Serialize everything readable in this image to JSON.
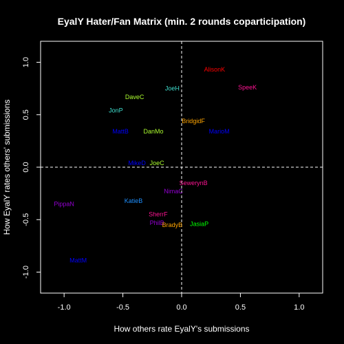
{
  "chart_data": {
    "type": "scatter",
    "title": "EyalY Hater/Fan Matrix (min. 2 rounds coparticipation)",
    "xlabel": "How others rate EyalY's submissions",
    "ylabel": "How EyalY rates others' submissions",
    "xlim": [
      -1.2,
      1.2
    ],
    "ylim": [
      -1.2,
      1.2
    ],
    "x_ticks": [
      -1.0,
      -0.5,
      0.0,
      0.5,
      1.0
    ],
    "y_ticks": [
      -1.0,
      -0.5,
      0.0,
      0.5,
      1.0
    ],
    "x_tick_labels": [
      "-1.0",
      "-0.5",
      "0.0",
      "0.5",
      "1.0"
    ],
    "y_tick_labels": [
      "-1.0",
      "-0.5",
      "0.0",
      "0.5",
      "1.0"
    ],
    "reference_lines": {
      "x": 0,
      "y": 0,
      "style": "dashed"
    },
    "grid": false,
    "background": "#000000",
    "points": [
      {
        "label": "AlisonK",
        "x": 0.28,
        "y": 0.93,
        "color": "#ff0000"
      },
      {
        "label": "SpeeK",
        "x": 0.56,
        "y": 0.76,
        "color": "#ff1493"
      },
      {
        "label": "JoeH",
        "x": -0.08,
        "y": 0.75,
        "color": "#40e0d0"
      },
      {
        "label": "DaveC",
        "x": -0.4,
        "y": 0.67,
        "color": "#adff2f"
      },
      {
        "label": "JonP",
        "x": -0.56,
        "y": 0.54,
        "color": "#40e0d0"
      },
      {
        "label": "BridgidF",
        "x": 0.1,
        "y": 0.44,
        "color": "#ffa500"
      },
      {
        "label": "MattB",
        "x": -0.52,
        "y": 0.34,
        "color": "#0000ff"
      },
      {
        "label": "DanMo",
        "x": -0.24,
        "y": 0.34,
        "color": "#adff2f"
      },
      {
        "label": "MarioM",
        "x": 0.32,
        "y": 0.34,
        "color": "#0000ff"
      },
      {
        "label": "MikeD",
        "x": -0.38,
        "y": 0.04,
        "color": "#0000ff"
      },
      {
        "label": "JoeC",
        "x": -0.21,
        "y": 0.04,
        "color": "#adff2f"
      },
      {
        "label": "SewerynB",
        "x": 0.1,
        "y": -0.15,
        "color": "#ff1493"
      },
      {
        "label": "NimaC",
        "x": -0.07,
        "y": -0.23,
        "color": "#9400d3"
      },
      {
        "label": "PippaN",
        "x": -1.0,
        "y": -0.35,
        "color": "#9400d3"
      },
      {
        "label": "KatieB",
        "x": -0.41,
        "y": -0.32,
        "color": "#1e90ff"
      },
      {
        "label": "SherrF",
        "x": -0.2,
        "y": -0.45,
        "color": "#ff1493"
      },
      {
        "label": "PhilB",
        "x": -0.21,
        "y": -0.53,
        "color": "#9400d3"
      },
      {
        "label": "BradyB",
        "x": -0.08,
        "y": -0.55,
        "color": "#ffa500"
      },
      {
        "label": "JasiaP",
        "x": 0.15,
        "y": -0.54,
        "color": "#00ff00"
      },
      {
        "label": "MattM",
        "x": -0.88,
        "y": -0.89,
        "color": "#0000ff"
      }
    ]
  }
}
